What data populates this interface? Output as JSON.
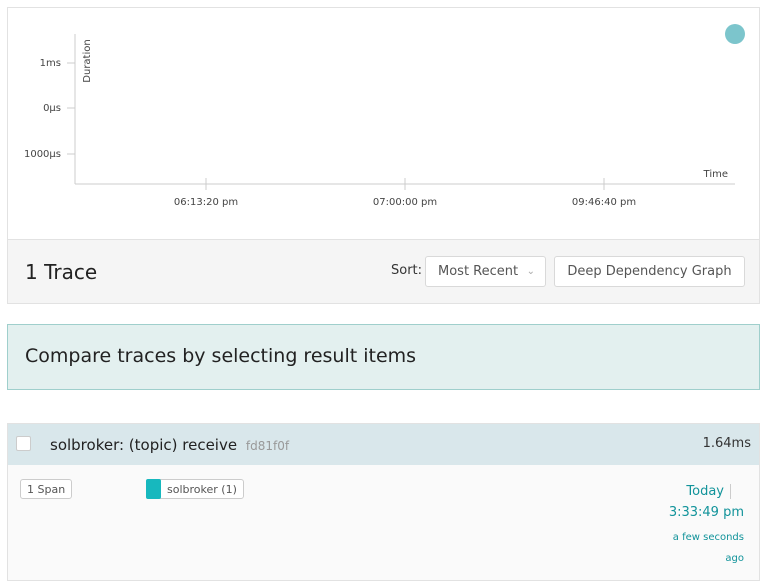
{
  "plot": {
    "y_label": "Duration",
    "x_label": "Time",
    "y_ticks": [
      "1ms",
      "0µs",
      "1000µs"
    ],
    "x_ticks": [
      "06:13:20 pm",
      "07:00:00 pm",
      "09:46:40 pm"
    ]
  },
  "header": {
    "count": "1 Trace",
    "sort_label": "Sort:",
    "sort_value": "Most Recent",
    "ddg_button": "Deep Dependency Graph"
  },
  "banner": "Compare traces by selecting result items",
  "results": [
    {
      "title": "solbroker: (topic) receive",
      "trace_id": "fd81f0f",
      "duration": {
        "value": 1.64,
        "label": "1.64ms"
      },
      "spans": "1 Span",
      "services": [
        "solbroker (1)"
      ],
      "date": "Today",
      "time": "3:33:49 pm",
      "relative": "a few seconds ago"
    }
  ]
}
